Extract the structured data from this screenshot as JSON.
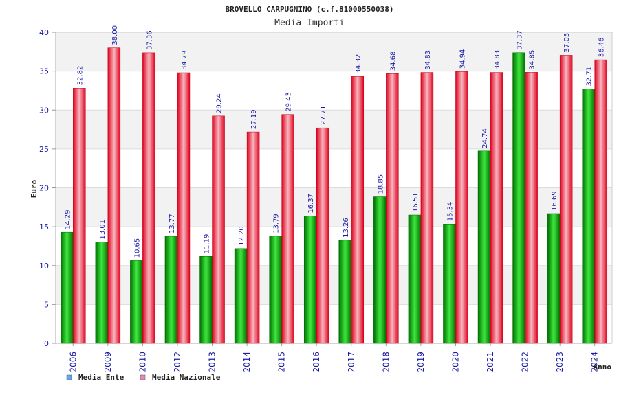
{
  "chart_data": {
    "type": "bar",
    "title": "BROVELLO CARPUGNINO (c.f.81000550038)",
    "subtitle": "Media Importi",
    "ylabel": "Euro",
    "xlabel": "Anno",
    "ylim": [
      0,
      40
    ],
    "yticks": [
      "0",
      "5",
      "10",
      "15",
      "20",
      "25",
      "30",
      "35",
      "40"
    ],
    "grid": true,
    "legend_position": "bottom-left",
    "categories": [
      "2006",
      "2009",
      "2010",
      "2012",
      "2013",
      "2014",
      "2015",
      "2016",
      "2017",
      "2018",
      "2019",
      "2020",
      "2021",
      "2022",
      "2023",
      "2024"
    ],
    "series": [
      {
        "name": "Media Ente",
        "color": "#00b000",
        "legend_color": "#5fa8f0",
        "values": [
          14.29,
          13.01,
          10.65,
          13.77,
          11.19,
          12.2,
          13.79,
          16.37,
          13.26,
          18.85,
          16.51,
          15.34,
          24.74,
          37.37,
          16.69,
          32.71
        ],
        "labels": [
          "14.29",
          "13.01",
          "10.65",
          "13.77",
          "11.19",
          "12.20",
          "13.79",
          "16.37",
          "13.26",
          "18.85",
          "16.51",
          "15.34",
          "24.74",
          "37.37",
          "16.69",
          "32.71"
        ]
      },
      {
        "name": "Media Nazionale",
        "color": "#e8001a",
        "legend_color": "#e68ab4",
        "values": [
          32.82,
          38.0,
          37.36,
          34.79,
          29.24,
          27.19,
          29.43,
          27.71,
          34.32,
          34.68,
          34.83,
          34.94,
          34.83,
          34.85,
          37.05,
          36.46
        ],
        "labels": [
          "32.82",
          "38.00",
          "37.36",
          "34.79",
          "29.24",
          "27.19",
          "29.43",
          "27.71",
          "34.32",
          "34.68",
          "34.83",
          "34.94",
          "34.83",
          "34.85",
          "37.05",
          "36.46"
        ]
      }
    ]
  }
}
